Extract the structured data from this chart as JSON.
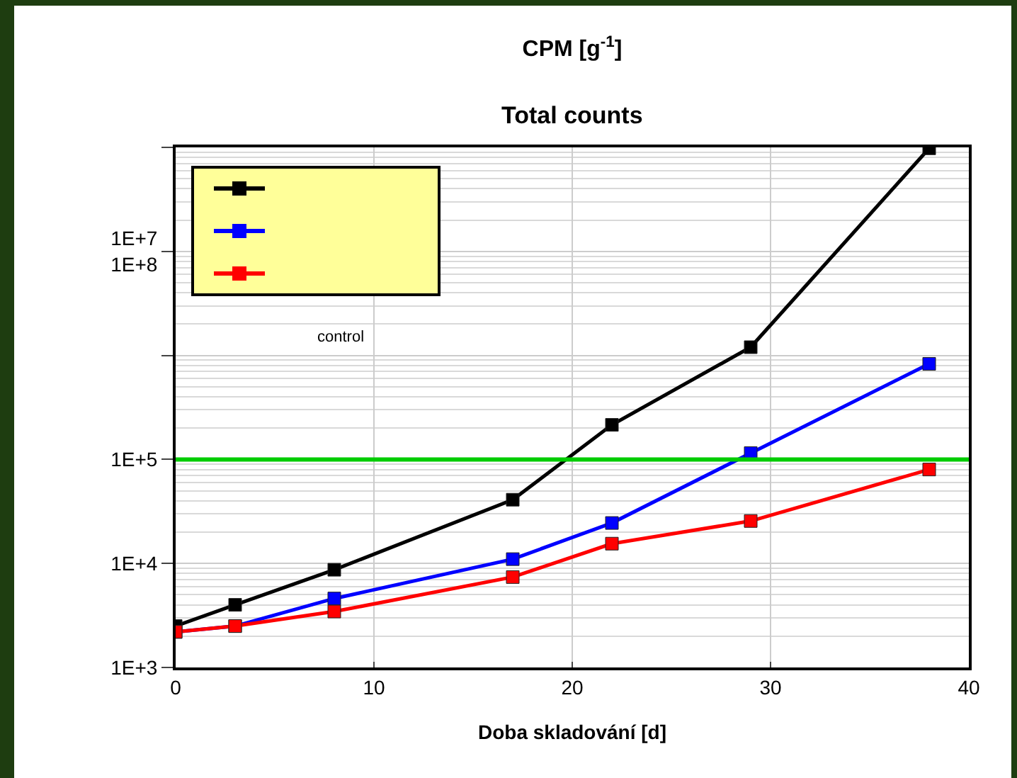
{
  "chart_data": {
    "type": "line",
    "title": "CPM [g$^{-1}$]",
    "subtitle": "Total counts",
    "xlabel": "Doba skladování [d]",
    "x": [
      0,
      3,
      8,
      17,
      22,
      29,
      38
    ],
    "series": [
      {
        "color": "#000000",
        "values": [
          2500,
          4000,
          8700,
          41000,
          215000,
          1200000,
          98000000
        ]
      },
      {
        "color": "#0000ff",
        "values": [
          2200,
          2500,
          4600,
          11000,
          24500,
          115000,
          830000
        ]
      },
      {
        "color": "#ff0000",
        "values": [
          2200,
          2500,
          3450,
          7400,
          15500,
          25600,
          80000
        ]
      }
    ],
    "xlim": [
      0,
      40
    ],
    "xticks": [
      0,
      10,
      20,
      30,
      40
    ],
    "ylim": [
      1000,
      100000000
    ],
    "yticks": [
      {
        "value": 1000,
        "label": "1E+3"
      },
      {
        "value": 10000,
        "label": "1E+4"
      },
      {
        "value": 100000,
        "label": "1E+5"
      },
      {
        "value": 1000000,
        "label": null
      },
      {
        "value": 10000000,
        "label": "1E+7\n1E+8"
      },
      {
        "value": 100000000,
        "label": null
      }
    ],
    "log": "y",
    "grid": true,
    "marker": "square",
    "line_style": "solid",
    "ref_lines": [
      {
        "axis": "y",
        "value": 100000,
        "color": "#00cc00"
      }
    ],
    "annotations": [
      "control"
    ]
  }
}
